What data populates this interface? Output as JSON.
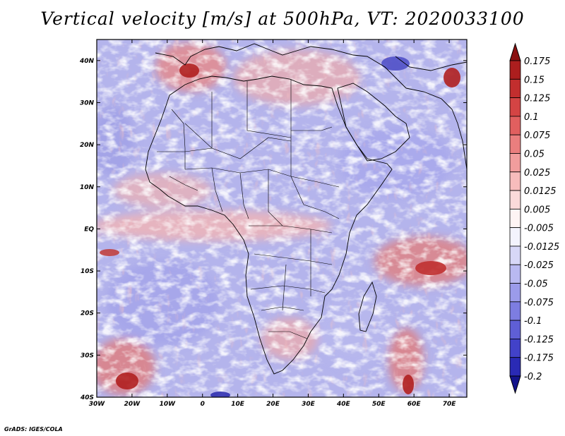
{
  "title": "Vertical velocity [m/s] at 500hPa, VT: 2020033100",
  "footer": "GrADS: IGES/COLA",
  "map": {
    "lon_range": [
      -30,
      75
    ],
    "lat_range": [
      -40,
      45
    ],
    "lat_ticks": [
      {
        "value": 40,
        "label": "40N"
      },
      {
        "value": 30,
        "label": "30N"
      },
      {
        "value": 20,
        "label": "20N"
      },
      {
        "value": 10,
        "label": "10N"
      },
      {
        "value": 0,
        "label": "EQ"
      },
      {
        "value": -10,
        "label": "10S"
      },
      {
        "value": -20,
        "label": "20S"
      },
      {
        "value": -30,
        "label": "30S"
      },
      {
        "value": -40,
        "label": "40S"
      }
    ],
    "lon_ticks": [
      {
        "value": -30,
        "label": "30W"
      },
      {
        "value": -20,
        "label": "20W"
      },
      {
        "value": -10,
        "label": "10W"
      },
      {
        "value": 0,
        "label": "0"
      },
      {
        "value": 10,
        "label": "10E"
      },
      {
        "value": 20,
        "label": "20E"
      },
      {
        "value": 30,
        "label": "30E"
      },
      {
        "value": 40,
        "label": "40E"
      },
      {
        "value": 50,
        "label": "50E"
      },
      {
        "value": 60,
        "label": "60E"
      },
      {
        "value": 70,
        "label": "70E"
      }
    ]
  },
  "colorbar": {
    "levels": [
      {
        "label": "0.175",
        "color": "#a01818"
      },
      {
        "label": "0.15",
        "color": "#b82424"
      },
      {
        "label": "0.125",
        "color": "#cc3838"
      },
      {
        "label": "0.1",
        "color": "#dc5050"
      },
      {
        "label": "0.075",
        "color": "#e66e6e"
      },
      {
        "label": "0.05",
        "color": "#ee8e8e"
      },
      {
        "label": "0.025",
        "color": "#f4acac"
      },
      {
        "label": "0.0125",
        "color": "#f9cccc"
      },
      {
        "label": "0.005",
        "color": "#fde8e8"
      },
      {
        "label": "-0.005",
        "color": "#ffffff"
      },
      {
        "label": "-0.0125",
        "color": "#e6e6fa"
      },
      {
        "label": "-0.025",
        "color": "#c8c8f4"
      },
      {
        "label": "-0.05",
        "color": "#aaaaee"
      },
      {
        "label": "-0.075",
        "color": "#8c8ce6"
      },
      {
        "label": "-0.1",
        "color": "#6e6edc"
      },
      {
        "label": "-0.125",
        "color": "#5050d0"
      },
      {
        "label": "-0.175",
        "color": "#3434c2"
      },
      {
        "label": "-0.2",
        "color": "#2020a8"
      }
    ],
    "top_color": "#8a1010",
    "bottom_color": "#14148c"
  }
}
